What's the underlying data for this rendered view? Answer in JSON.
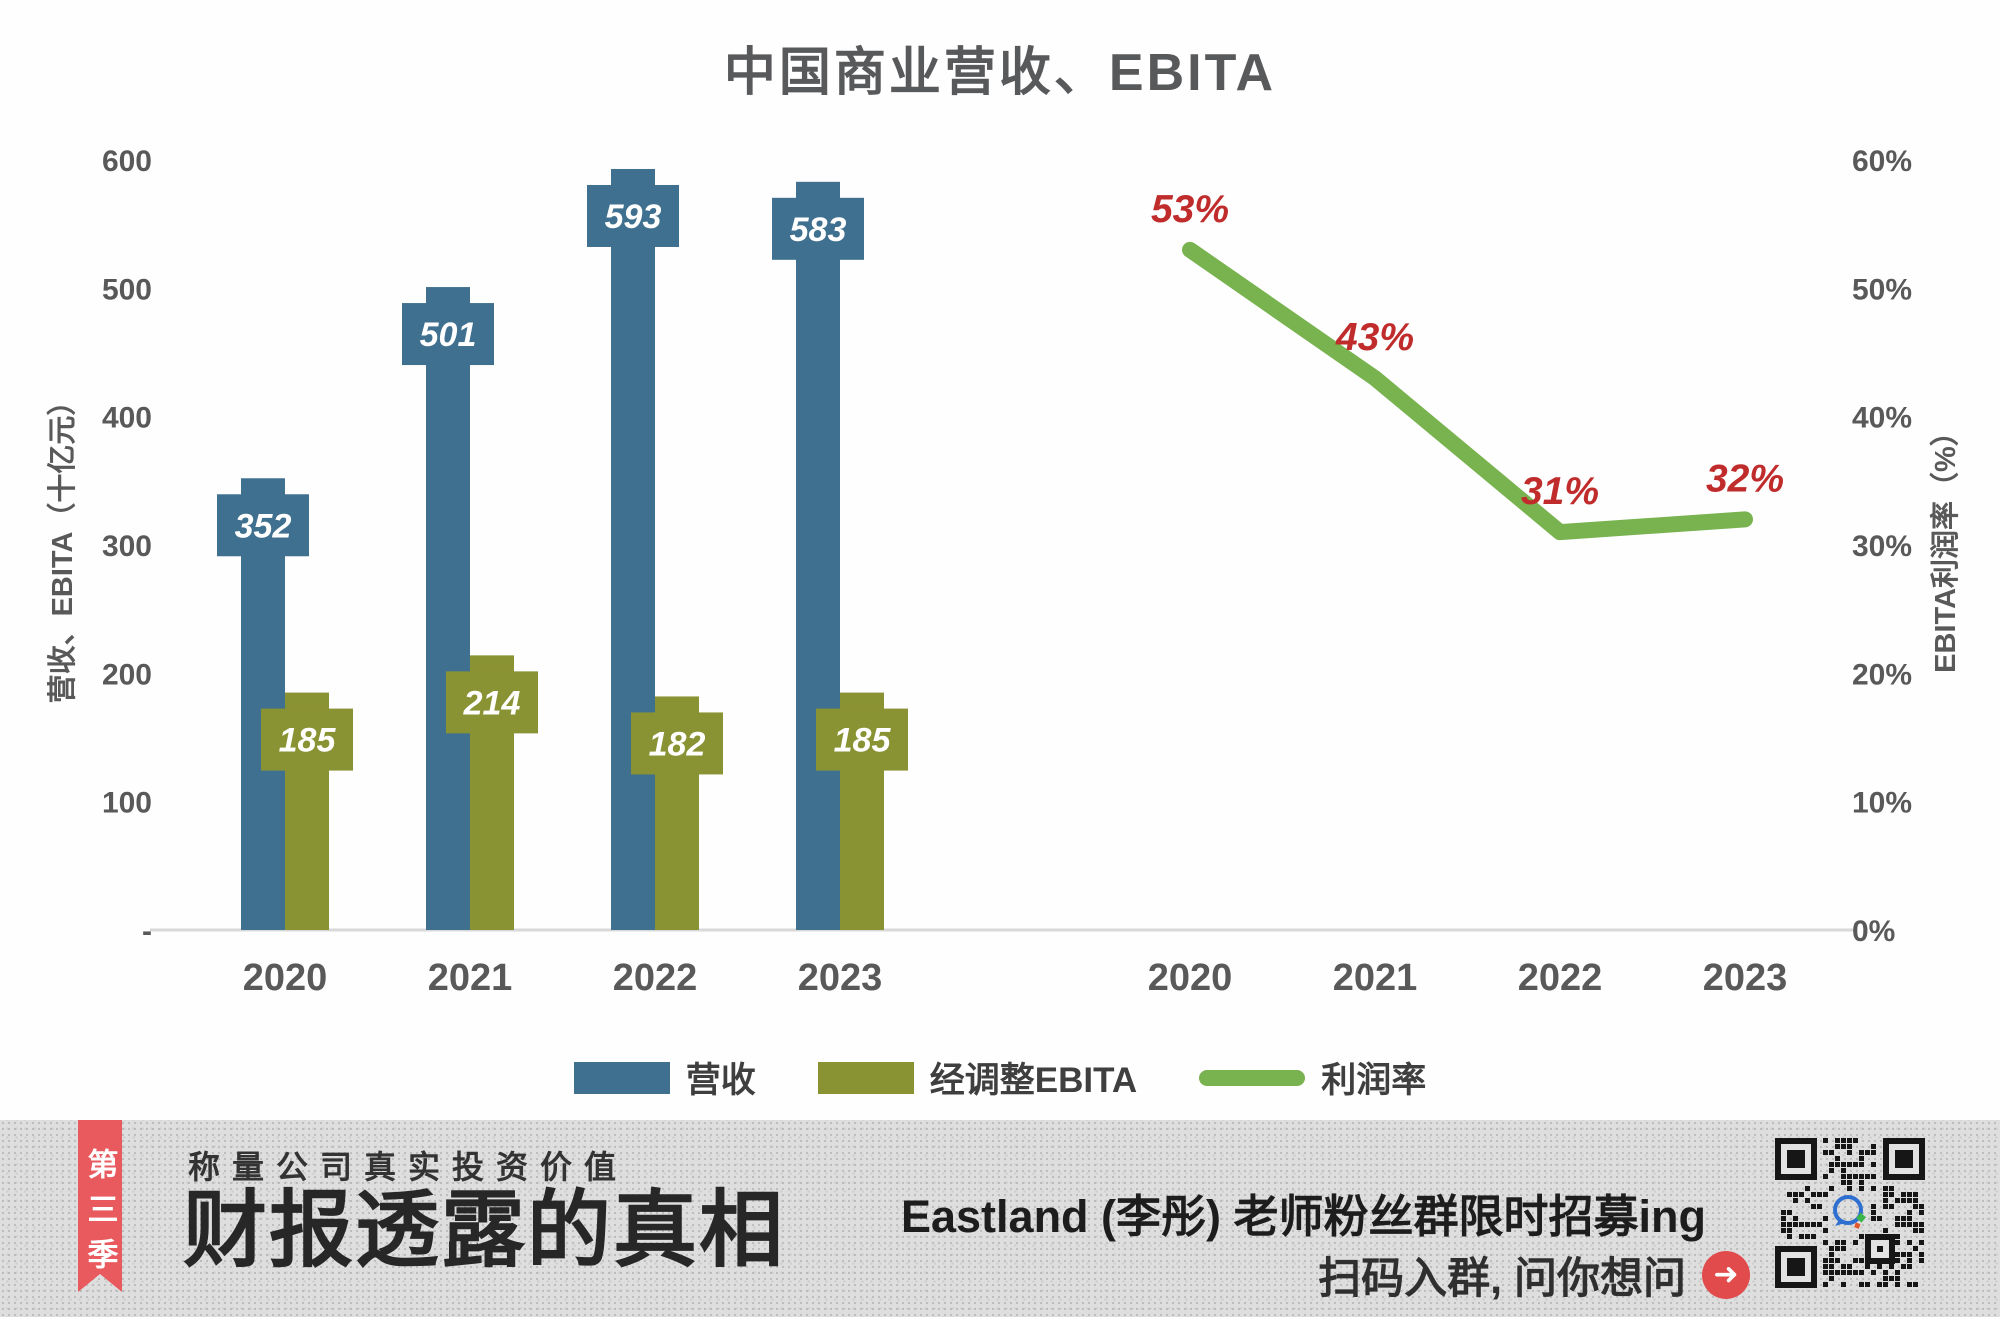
{
  "chart_data": {
    "type": "combo-bar-line",
    "title": "中国商业营收、EBITA",
    "categories": [
      "2020",
      "2021",
      "2022",
      "2023"
    ],
    "line_categories": [
      "2020",
      "2021",
      "2022",
      "2023"
    ],
    "series": [
      {
        "name": "营收",
        "type": "bar",
        "axis": "left",
        "color": "#40708f",
        "values": [
          352,
          501,
          593,
          583
        ],
        "labels": [
          "352",
          "501",
          "593",
          "583"
        ]
      },
      {
        "name": "经调整EBITA",
        "type": "bar",
        "axis": "left",
        "color": "#8a9334",
        "values": [
          185,
          214,
          182,
          185
        ],
        "labels": [
          "185",
          "214",
          "182",
          "185"
        ]
      },
      {
        "name": "利润率",
        "type": "line",
        "axis": "right",
        "color": "#79b350",
        "values": [
          53,
          43,
          31,
          32
        ],
        "labels": [
          "53%",
          "43%",
          "31%",
          "32%"
        ],
        "label_color": "#bf2c2b"
      }
    ],
    "left_axis": {
      "title": "营收、EBITA（十亿元）",
      "range": [
        0,
        600
      ],
      "tick_values": [
        600,
        500,
        400,
        300,
        200,
        100,
        0
      ],
      "ticks": [
        "600",
        "500",
        "400",
        "300",
        "200",
        "100",
        "-"
      ]
    },
    "right_axis": {
      "title": "EBITA利润率（%）",
      "range": [
        0,
        60
      ],
      "tick_values": [
        60,
        50,
        40,
        30,
        20,
        10,
        0
      ],
      "ticks": [
        "60%",
        "50%",
        "40%",
        "30%",
        "20%",
        "10%",
        "0%"
      ]
    },
    "grid": false,
    "legend_position": "bottom",
    "legend": [
      {
        "label": "营收",
        "swatch": "bar",
        "color": "#40708f"
      },
      {
        "label": "经调整EBITA",
        "swatch": "bar",
        "color": "#8a9334"
      },
      {
        "label": "利润率",
        "swatch": "line",
        "color": "#79b350"
      }
    ],
    "axis_text_color": "#595959",
    "bar_value_text_color": "#ffffff"
  },
  "banner": {
    "ribbon": "第三季",
    "ribbon_color": "#e85a5e",
    "subtitle": "称量公司真实投资价值",
    "main_title": "财报透露的真相",
    "promo_line1": "Eastland (李彤) 老师粉丝群限时招募ing",
    "promo_line2": "扫码入群, 问你想问",
    "arrow_icon": "circle-arrow-right",
    "arrow_glyph": "➜",
    "arrow_color": "#e24b4b",
    "qr_icon": "wechat-qr-code"
  }
}
